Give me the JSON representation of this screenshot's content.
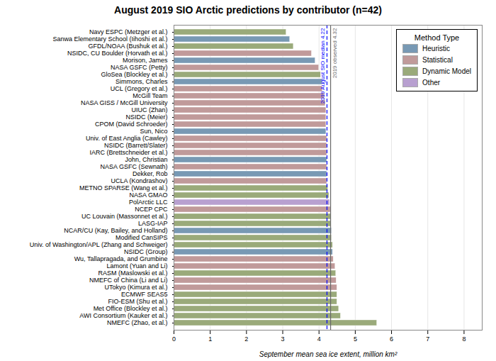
{
  "chart_data": {
    "type": "bar",
    "orientation": "horizontal",
    "title": "August 2019 SIO Arctic predictions by contributor (n=42)",
    "xlabel": "September mean sea ice extent, million km²",
    "categories": [
      "Navy ESPC (Metzger et al.)",
      "Sanwa Elementary School (Iihoshi et al.)",
      "GFDL/NOAA (Bushuk et al.)",
      "NSIDC, CU Boulder (Horvath et al.)",
      "Morison, James",
      "NASA GSFC (Petty)",
      "GloSea (Blockley et al.)",
      "Simmons, Charles",
      "UCL (Gregory et al.)",
      "McGill Team",
      "NASA GISS / McGill University",
      "UIUC (Zhan)",
      "NSIDC (Meier)",
      "CPOM (David Schroeder)",
      "Sun, Nico",
      "Univ. of East Anglia (Cawley)",
      "NSIDC (Barrett/Slater)",
      "IARC (Brettschneider et al.)",
      "John, Christian",
      "NASA GSFC (Sewnath)",
      "Dekker, Rob",
      "UCLA (Kondrashov)",
      "METNO SPARSE (Wang et al.)",
      "NASA GMAO",
      "PolArctic LLC",
      "NCEP CPC",
      "UC Louvain (Massonnet et al.)",
      "LASG-IAP",
      "NCAR/CU (Kay, Bailey, and Holland)",
      "Modified CanSIPS",
      "Univ. of Washington/APL (Zhang and Schweiger)",
      "NSIDC (Group)",
      "Wu, Tallapragada, and Grumbine",
      "Lamont (Yuan and Li)",
      "RASM (Maslowski et al.)",
      "NMEFC of China (Li and Li)",
      "UTokyo (Kimura et al.)",
      "ECMWF SEAS5",
      "FIO-ESM (Shu et al.)",
      "Met Office (Blockley et al.)",
      "AWI Consortium (Kauker et al.)",
      "NMEFC (Zhao, et al.)"
    ],
    "series": [
      {
        "name": "Heuristic",
        "color": "#7899b4",
        "values": [
          null,
          3.2,
          null,
          null,
          3.9,
          null,
          null,
          4.1,
          null,
          null,
          null,
          null,
          null,
          null,
          4.2,
          null,
          null,
          null,
          4.22,
          null,
          4.22,
          null,
          null,
          null,
          null,
          null,
          null,
          null,
          4.35,
          null,
          null,
          4.38,
          null,
          null,
          null,
          null,
          null,
          null,
          null,
          null,
          null,
          null
        ]
      },
      {
        "name": "Statistical",
        "color": "#c09a9a",
        "values": [
          null,
          null,
          null,
          3.8,
          null,
          4.0,
          null,
          null,
          4.1,
          4.15,
          4.18,
          4.2,
          4.2,
          4.2,
          null,
          4.22,
          4.22,
          4.22,
          null,
          4.22,
          null,
          4.22,
          null,
          null,
          null,
          4.32,
          null,
          null,
          null,
          null,
          null,
          null,
          4.4,
          4.45,
          null,
          4.48,
          4.5,
          null,
          null,
          null,
          null,
          null
        ]
      },
      {
        "name": "Dynamic Model",
        "color": "#9aaa7a",
        "values": [
          3.1,
          null,
          3.3,
          null,
          null,
          null,
          4.05,
          null,
          null,
          null,
          null,
          null,
          null,
          null,
          null,
          null,
          null,
          null,
          null,
          null,
          null,
          null,
          4.25,
          4.28,
          null,
          null,
          4.33,
          4.33,
          null,
          4.35,
          4.38,
          null,
          null,
          null,
          4.47,
          null,
          null,
          4.5,
          4.5,
          4.55,
          4.6,
          5.6
        ]
      },
      {
        "name": "Other",
        "color": "#b8a0d0",
        "values": [
          null,
          null,
          null,
          null,
          null,
          null,
          null,
          null,
          null,
          null,
          null,
          null,
          null,
          null,
          null,
          null,
          null,
          null,
          null,
          null,
          null,
          null,
          null,
          null,
          4.3,
          null,
          null,
          null,
          null,
          null,
          null,
          null,
          null,
          null,
          null,
          null,
          null,
          null,
          null,
          null,
          null,
          null
        ]
      }
    ],
    "xlim": [
      0,
      8.5
    ],
    "xticks": [
      0,
      1,
      2,
      3,
      4,
      5,
      6,
      7,
      8
    ],
    "grid": true,
    "legend": "upper right",
    "legend_title": "Method Type",
    "annotations": [
      {
        "x": 4.22,
        "text": "2019 August SIO median 4.22",
        "color": "blue",
        "line_style": "dashed"
      },
      {
        "x": 4.32,
        "text": "2019 observed 4.32",
        "color": "dimgray",
        "line_style": "solid"
      }
    ]
  }
}
